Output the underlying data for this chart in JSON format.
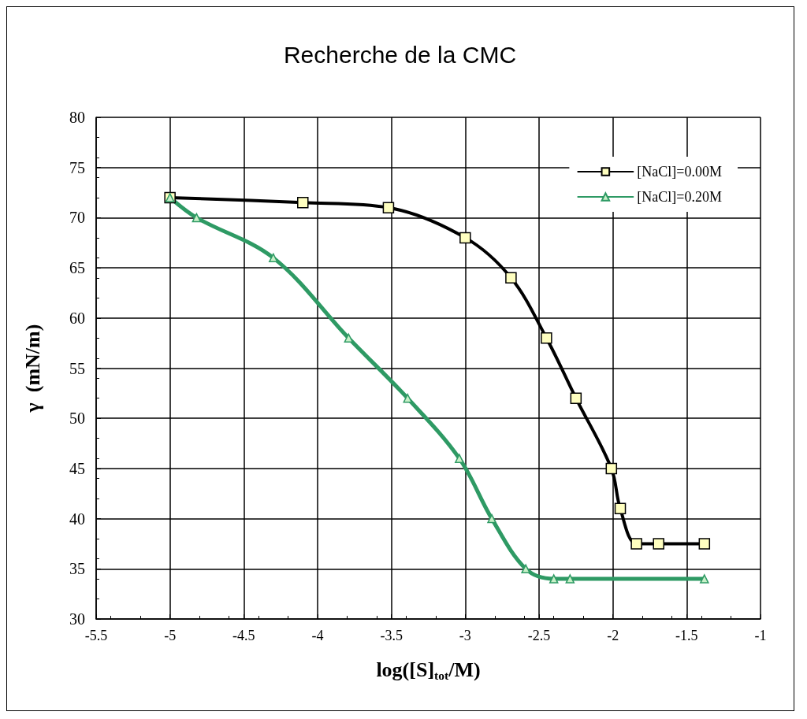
{
  "chart_data": {
    "type": "line",
    "title": "Recherche de la CMC",
    "xlabel": "log([S]$_{tot}$/M)",
    "ylabel": "γ  (mN/m)",
    "xlim": [
      -5.5,
      -1
    ],
    "xticks": [
      -5.5,
      -5,
      -4.5,
      -4,
      -3.5,
      -3,
      -2.5,
      -2,
      -1.5,
      -1
    ],
    "ylim": [
      30,
      80
    ],
    "yticks": [
      30,
      35,
      40,
      45,
      50,
      55,
      60,
      65,
      70,
      75,
      80
    ],
    "grid": true,
    "legend": "top right",
    "series": [
      {
        "name": "[NaCl]=0.00M",
        "color": "#000000",
        "marker": "square",
        "x": [
          -5,
          -4.1,
          -3.52,
          -3.0,
          -2.69,
          -2.45,
          -2.25,
          -2.01,
          -1.95,
          -1.84,
          -1.69,
          -1.38
        ],
        "values": [
          72,
          71.5,
          71,
          68,
          64,
          58,
          52,
          45,
          41,
          37.5,
          37.5,
          37.5
        ]
      },
      {
        "name": "[NaCl]=0.20M",
        "color": "#2e9a64",
        "marker": "triangle",
        "x": [
          -5,
          -4.82,
          -4.3,
          -3.79,
          -3.39,
          -3.04,
          -2.82,
          -2.59,
          -2.4,
          -2.29,
          -1.38
        ],
        "values": [
          72,
          70,
          66,
          58,
          52,
          46,
          40,
          35,
          34,
          34,
          34
        ]
      }
    ]
  }
}
